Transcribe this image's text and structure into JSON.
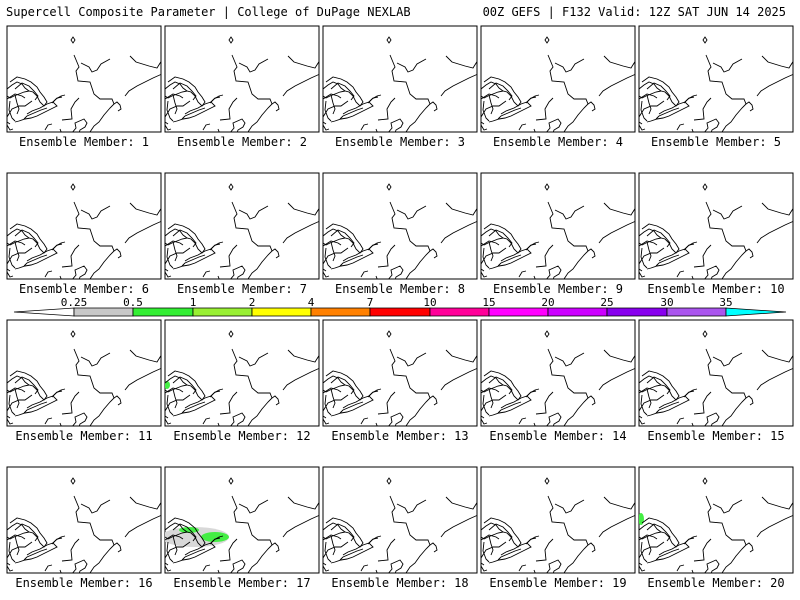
{
  "header": {
    "left": "Supercell Composite Parameter | College of DuPage NEXLAB",
    "right": "00Z GEFS | F132 Valid: 12Z SAT JUN 14 2025"
  },
  "panels": [
    {
      "label": "Ensemble Member: 1"
    },
    {
      "label": "Ensemble Member: 2"
    },
    {
      "label": "Ensemble Member: 3"
    },
    {
      "label": "Ensemble Member: 4"
    },
    {
      "label": "Ensemble Member: 5"
    },
    {
      "label": "Ensemble Member: 6"
    },
    {
      "label": "Ensemble Member: 7"
    },
    {
      "label": "Ensemble Member: 8"
    },
    {
      "label": "Ensemble Member: 9"
    },
    {
      "label": "Ensemble Member: 10"
    },
    {
      "label": "Ensemble Member: 11"
    },
    {
      "label": "Ensemble Member: 12"
    },
    {
      "label": "Ensemble Member: 13"
    },
    {
      "label": "Ensemble Member: 14"
    },
    {
      "label": "Ensemble Member: 15"
    },
    {
      "label": "Ensemble Member: 16"
    },
    {
      "label": "Ensemble Member: 17"
    },
    {
      "label": "Ensemble Member: 18"
    },
    {
      "label": "Ensemble Member: 19"
    },
    {
      "label": "Ensemble Member: 20"
    }
  ],
  "colorbar": {
    "ticks": [
      "0.25",
      "0.5",
      "1",
      "2",
      "4",
      "7",
      "10",
      "15",
      "20",
      "25",
      "30",
      "35"
    ],
    "colors": [
      "#ffffff",
      "#c8c8c8",
      "#33ee33",
      "#99f033",
      "#ffff00",
      "#ff8000",
      "#ff0000",
      "#ff0099",
      "#ff00ff",
      "#cc00ff",
      "#8800ee",
      "#aa55ee",
      "#00ffff"
    ]
  },
  "features": {
    "member12": "green",
    "member17": "green",
    "member20": "green"
  }
}
